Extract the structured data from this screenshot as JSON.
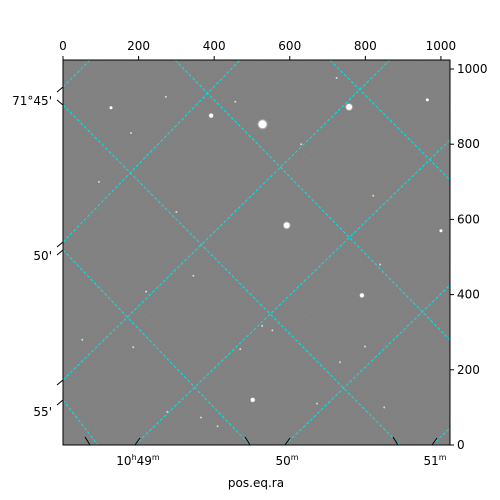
{
  "chart_data": {
    "type": "image",
    "xlabel": "pos.eq.ra",
    "ylabel": "",
    "pixel_axes": {
      "xlim": [
        0,
        1024
      ],
      "ylim": [
        0,
        1024
      ],
      "x_ticks": [
        "0",
        "200",
        "400",
        "600",
        "800",
        "1000"
      ],
      "y_ticks": [
        "0",
        "200",
        "400",
        "600",
        "800",
        "1000"
      ]
    },
    "world_axes": {
      "ra_ticks": [
        {
          "label": "10",
          "h": "h",
          "m": "49",
          "unit": "m"
        },
        {
          "label": "50",
          "unit": "m"
        },
        {
          "label": "51",
          "unit": "m"
        }
      ],
      "dec_ticks": [
        "71°45'",
        "50'",
        "55'"
      ]
    },
    "grid": true,
    "grid_color": "#00e5e5",
    "image_background": "#7c7c7c",
    "stars": [
      {
        "x": 528,
        "y": 853,
        "size": 4
      },
      {
        "x": 592,
        "y": 584,
        "size": 3
      },
      {
        "x": 757,
        "y": 899,
        "size": 3
      },
      {
        "x": 791,
        "y": 398,
        "size": 2
      },
      {
        "x": 392,
        "y": 876,
        "size": 2
      },
      {
        "x": 502,
        "y": 120,
        "size": 2
      },
      {
        "x": 964,
        "y": 918,
        "size": 1.5
      },
      {
        "x": 1000,
        "y": 570,
        "size": 1.5
      },
      {
        "x": 127,
        "y": 897,
        "size": 1.5
      },
      {
        "x": 724,
        "y": 976,
        "size": 1
      },
      {
        "x": 272,
        "y": 926,
        "size": 1
      },
      {
        "x": 469,
        "y": 255,
        "size": 1
      },
      {
        "x": 799,
        "y": 262,
        "size": 1
      },
      {
        "x": 220,
        "y": 408,
        "size": 1
      },
      {
        "x": 554,
        "y": 305,
        "size": 1
      },
      {
        "x": 527,
        "y": 317,
        "size": 1
      },
      {
        "x": 821,
        "y": 663,
        "size": 1
      },
      {
        "x": 409,
        "y": 50,
        "size": 1
      },
      {
        "x": 276,
        "y": 88,
        "size": 1
      },
      {
        "x": 365,
        "y": 73,
        "size": 1
      },
      {
        "x": 186,
        "y": 260,
        "size": 1
      },
      {
        "x": 839,
        "y": 480,
        "size": 1
      },
      {
        "x": 95,
        "y": 700,
        "size": 1
      },
      {
        "x": 672,
        "y": 110,
        "size": 1
      },
      {
        "x": 733,
        "y": 220,
        "size": 1
      },
      {
        "x": 51,
        "y": 280,
        "size": 1
      },
      {
        "x": 180,
        "y": 830,
        "size": 1
      },
      {
        "x": 456,
        "y": 913,
        "size": 1
      },
      {
        "x": 850,
        "y": 100,
        "size": 1
      },
      {
        "x": 345,
        "y": 450,
        "size": 1
      },
      {
        "x": 630,
        "y": 800,
        "size": 1
      },
      {
        "x": 300,
        "y": 620,
        "size": 1
      }
    ]
  }
}
